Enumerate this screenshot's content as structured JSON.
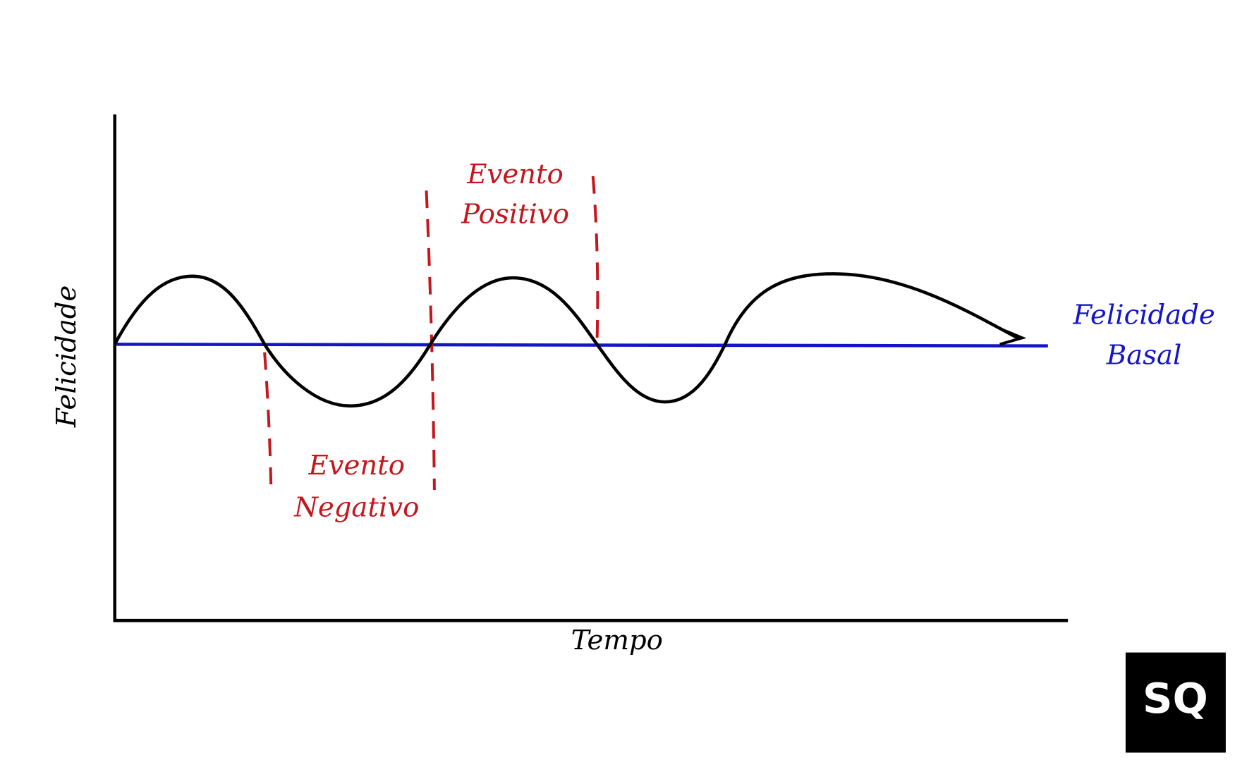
{
  "axes": {
    "y_label": "Felicidade",
    "x_label": "Tempo"
  },
  "annotations": {
    "positive_event": [
      "Evento",
      "Positivo"
    ],
    "negative_event": [
      "Evento",
      "Negativo"
    ],
    "baseline": [
      "Felicidade",
      "Basal"
    ]
  },
  "logo": "SQ"
}
